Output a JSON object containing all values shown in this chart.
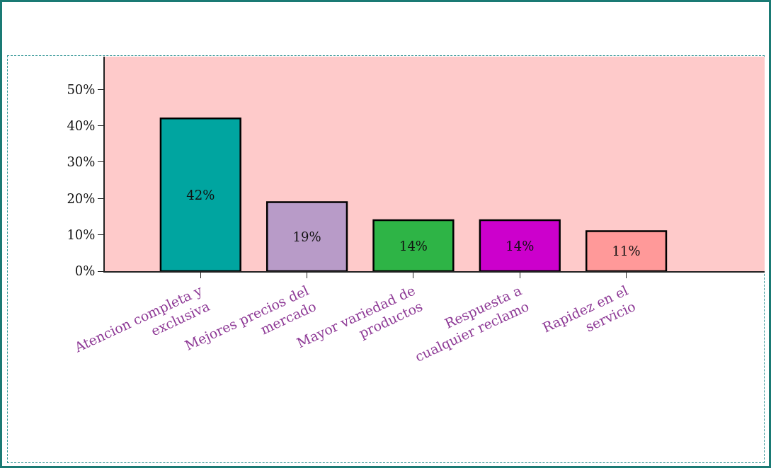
{
  "chart_data": {
    "type": "bar",
    "categories": [
      "Atencion completa y exclusiva",
      "Mejores precios del mercado",
      "Mayor variedad de productos",
      "Respuesta a cualquier reclamo",
      "Rapidez en el servicio"
    ],
    "values": [
      42,
      19,
      14,
      14,
      11
    ],
    "colors": [
      "#00a5a0",
      "#b89bc8",
      "#2eb446",
      "#cc00cc",
      "#ff9999"
    ],
    "value_labels": [
      "42%",
      "19%",
      "14%",
      "14%",
      "11%"
    ],
    "ylim": [
      0,
      59
    ],
    "yticks": [
      {
        "value": 0,
        "label": "0%"
      },
      {
        "value": 10,
        "label": "10%"
      },
      {
        "value": 20,
        "label": "20%"
      },
      {
        "value": 30,
        "label": "30%"
      },
      {
        "value": 40,
        "label": "40%"
      },
      {
        "value": 50,
        "label": "50%"
      }
    ],
    "grid": false
  }
}
